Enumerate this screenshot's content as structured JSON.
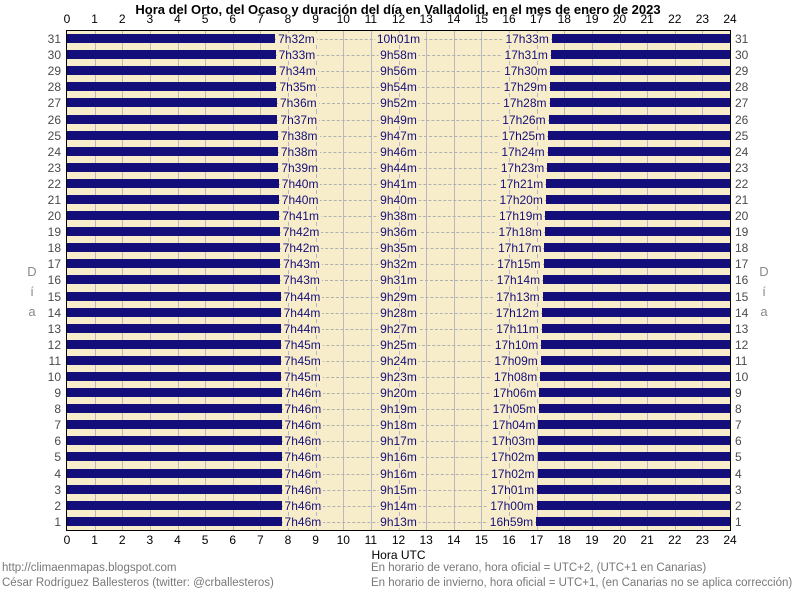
{
  "chart_data": {
    "type": "bar",
    "subtype": "daylight-span-chart",
    "title": "Hora del Orto, del Ocaso y duración del día en Valladolid, en el mes de enero de 2023",
    "xlabel": "Hora UTC",
    "ylabel": "Día",
    "x_range": [
      0,
      24
    ],
    "x_ticks": [
      0,
      1,
      2,
      3,
      4,
      5,
      6,
      7,
      8,
      9,
      10,
      11,
      12,
      13,
      14,
      15,
      16,
      17,
      18,
      19,
      20,
      21,
      22,
      23,
      24
    ],
    "grid": "vertical hourly gridlines, dashed row guides",
    "legend_position": "none",
    "days": [
      {
        "day": 31,
        "sunrise": "7h32m",
        "daylight": "10h01m",
        "sunset": "17h33m"
      },
      {
        "day": 30,
        "sunrise": "7h33m",
        "daylight": "9h58m",
        "sunset": "17h31m"
      },
      {
        "day": 29,
        "sunrise": "7h34m",
        "daylight": "9h56m",
        "sunset": "17h30m"
      },
      {
        "day": 28,
        "sunrise": "7h35m",
        "daylight": "9h54m",
        "sunset": "17h29m"
      },
      {
        "day": 27,
        "sunrise": "7h36m",
        "daylight": "9h52m",
        "sunset": "17h28m"
      },
      {
        "day": 26,
        "sunrise": "7h37m",
        "daylight": "9h49m",
        "sunset": "17h26m"
      },
      {
        "day": 25,
        "sunrise": "7h38m",
        "daylight": "9h47m",
        "sunset": "17h25m"
      },
      {
        "day": 24,
        "sunrise": "7h38m",
        "daylight": "9h46m",
        "sunset": "17h24m"
      },
      {
        "day": 23,
        "sunrise": "7h39m",
        "daylight": "9h44m",
        "sunset": "17h23m"
      },
      {
        "day": 22,
        "sunrise": "7h40m",
        "daylight": "9h41m",
        "sunset": "17h21m"
      },
      {
        "day": 21,
        "sunrise": "7h40m",
        "daylight": "9h40m",
        "sunset": "17h20m"
      },
      {
        "day": 20,
        "sunrise": "7h41m",
        "daylight": "9h38m",
        "sunset": "17h19m"
      },
      {
        "day": 19,
        "sunrise": "7h42m",
        "daylight": "9h36m",
        "sunset": "17h18m"
      },
      {
        "day": 18,
        "sunrise": "7h42m",
        "daylight": "9h35m",
        "sunset": "17h17m"
      },
      {
        "day": 17,
        "sunrise": "7h43m",
        "daylight": "9h32m",
        "sunset": "17h15m"
      },
      {
        "day": 16,
        "sunrise": "7h43m",
        "daylight": "9h31m",
        "sunset": "17h14m"
      },
      {
        "day": 15,
        "sunrise": "7h44m",
        "daylight": "9h29m",
        "sunset": "17h13m"
      },
      {
        "day": 14,
        "sunrise": "7h44m",
        "daylight": "9h28m",
        "sunset": "17h12m"
      },
      {
        "day": 13,
        "sunrise": "7h44m",
        "daylight": "9h27m",
        "sunset": "17h11m"
      },
      {
        "day": 12,
        "sunrise": "7h45m",
        "daylight": "9h25m",
        "sunset": "17h10m"
      },
      {
        "day": 11,
        "sunrise": "7h45m",
        "daylight": "9h24m",
        "sunset": "17h09m"
      },
      {
        "day": 10,
        "sunrise": "7h45m",
        "daylight": "9h23m",
        "sunset": "17h08m"
      },
      {
        "day": 9,
        "sunrise": "7h46m",
        "daylight": "9h20m",
        "sunset": "17h06m"
      },
      {
        "day": 8,
        "sunrise": "7h46m",
        "daylight": "9h19m",
        "sunset": "17h05m"
      },
      {
        "day": 7,
        "sunrise": "7h46m",
        "daylight": "9h18m",
        "sunset": "17h04m"
      },
      {
        "day": 6,
        "sunrise": "7h46m",
        "daylight": "9h17m",
        "sunset": "17h03m"
      },
      {
        "day": 5,
        "sunrise": "7h46m",
        "daylight": "9h16m",
        "sunset": "17h02m"
      },
      {
        "day": 4,
        "sunrise": "7h46m",
        "daylight": "9h16m",
        "sunset": "17h02m"
      },
      {
        "day": 3,
        "sunrise": "7h46m",
        "daylight": "9h15m",
        "sunset": "17h01m"
      },
      {
        "day": 2,
        "sunrise": "7h46m",
        "daylight": "9h14m",
        "sunset": "17h00m"
      },
      {
        "day": 1,
        "sunrise": "7h46m",
        "daylight": "9h13m",
        "sunset": "16h59m"
      }
    ]
  },
  "colors": {
    "night_bar": "#140E7A",
    "plot_background": "#F8EDCB",
    "gridline": "#B8B8C2",
    "dashed_guide": "#B0B0B0",
    "label_text": "#140E7A",
    "axis_text": "#000000",
    "footer_text": "#787878"
  },
  "footer": {
    "left_line1": "http://climaenmapas.blogspot.com",
    "left_line2": "César Rodríguez Ballesteros (twitter: @crballesteros)",
    "right_line1": "En horario de verano, hora oficial = UTC+2, (UTC+1 en Canarias)",
    "right_line2": "En horario de invierno, hora oficial = UTC+1, (en Canarias no se aplica corrección)"
  }
}
